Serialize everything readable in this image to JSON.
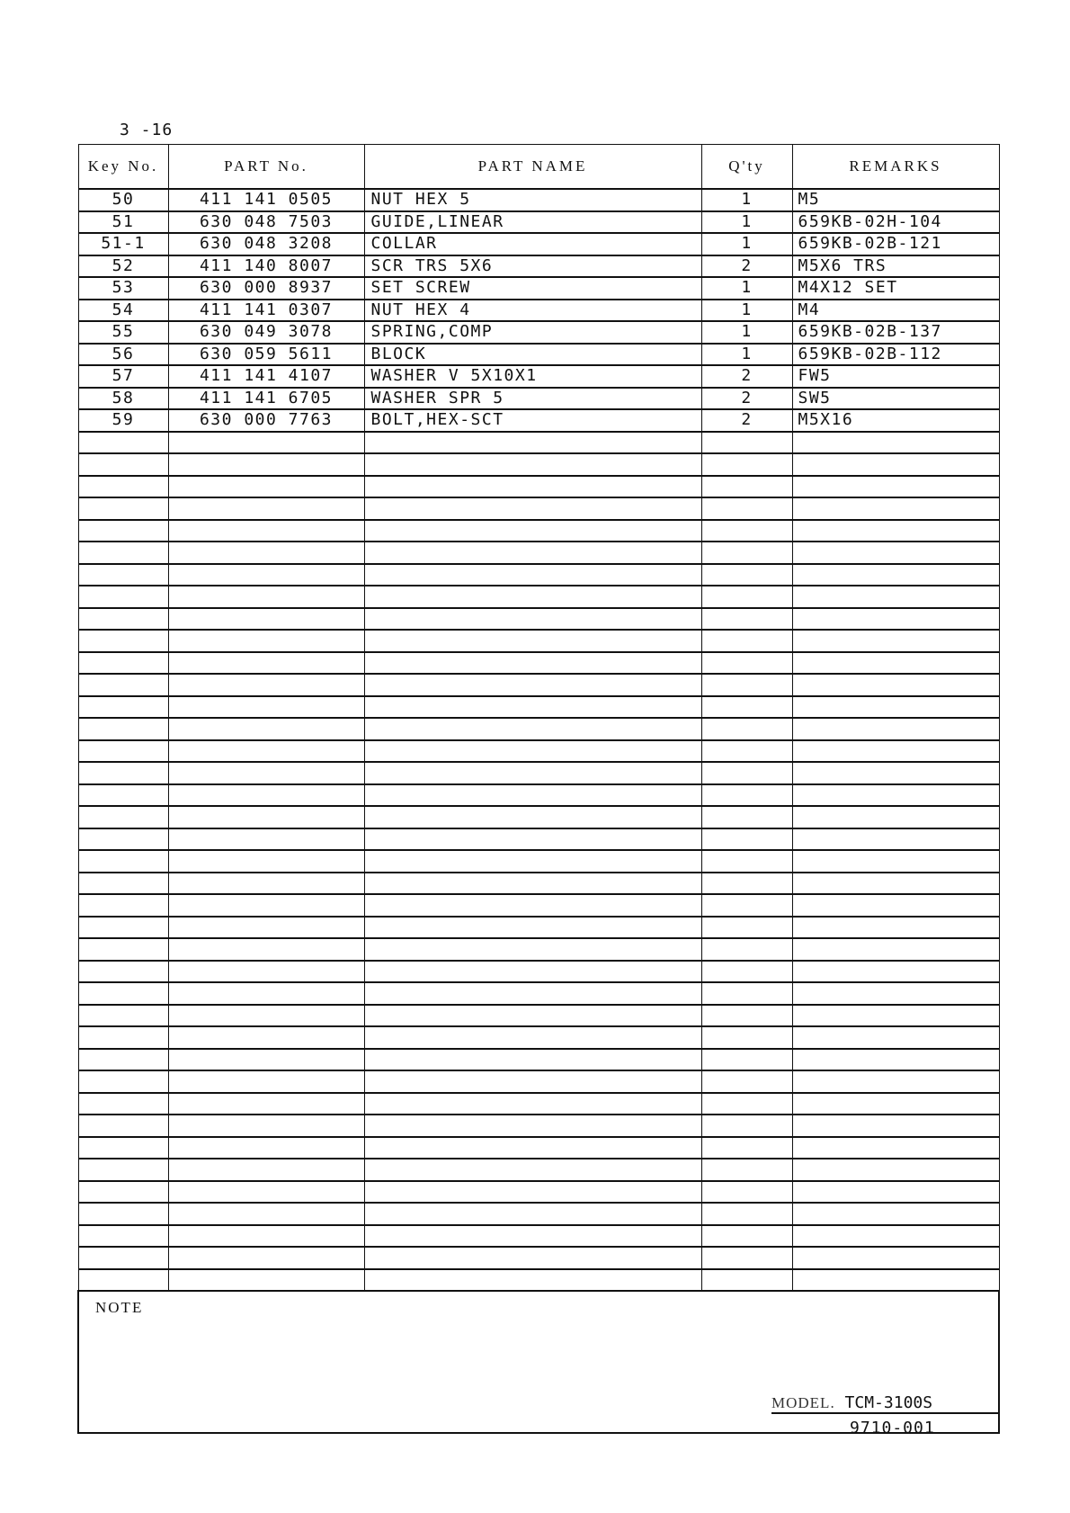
{
  "page_number": "3 -16",
  "headers": {
    "key_no": "Key No.",
    "part_no": "PART No.",
    "part_name": "PART NAME",
    "qty": "Q'ty",
    "remarks": "REMARKS"
  },
  "rows": [
    {
      "key": "50",
      "part_no": "411 141 0505",
      "name": "NUT HEX 5",
      "qty": "1",
      "remarks": "M5"
    },
    {
      "key": "51",
      "part_no": "630 048 7503",
      "name": "GUIDE,LINEAR",
      "qty": "1",
      "remarks": "659KB-02H-104"
    },
    {
      "key": "51-1",
      "part_no": "630 048 3208",
      "name": "COLLAR",
      "qty": "1",
      "remarks": "659KB-02B-121"
    },
    {
      "key": "52",
      "part_no": "411 140 8007",
      "name": "SCR TRS 5X6",
      "qty": "2",
      "remarks": "M5X6 TRS"
    },
    {
      "key": "53",
      "part_no": "630 000 8937",
      "name": "SET SCREW",
      "qty": "1",
      "remarks": "M4X12 SET"
    },
    {
      "key": "54",
      "part_no": "411 141 0307",
      "name": "NUT HEX 4",
      "qty": "1",
      "remarks": "M4"
    },
    {
      "key": "55",
      "part_no": "630 049 3078",
      "name": "SPRING,COMP",
      "qty": "1",
      "remarks": "659KB-02B-137"
    },
    {
      "key": "56",
      "part_no": "630 059 5611",
      "name": "BLOCK",
      "qty": "1",
      "remarks": "659KB-02B-112"
    },
    {
      "key": "57",
      "part_no": "411 141 4107",
      "name": "WASHER V 5X10X1",
      "qty": "2",
      "remarks": "FW5"
    },
    {
      "key": "58",
      "part_no": "411 141 6705",
      "name": "WASHER SPR 5",
      "qty": "2",
      "remarks": "SW5"
    },
    {
      "key": "59",
      "part_no": "630 000 7763",
      "name": "BOLT,HEX-SCT",
      "qty": "2",
      "remarks": "M5X16"
    }
  ],
  "note_label": "NOTE",
  "model_label": "MODEL.",
  "model": "TCM-3100S",
  "doc_code": "9710-001"
}
